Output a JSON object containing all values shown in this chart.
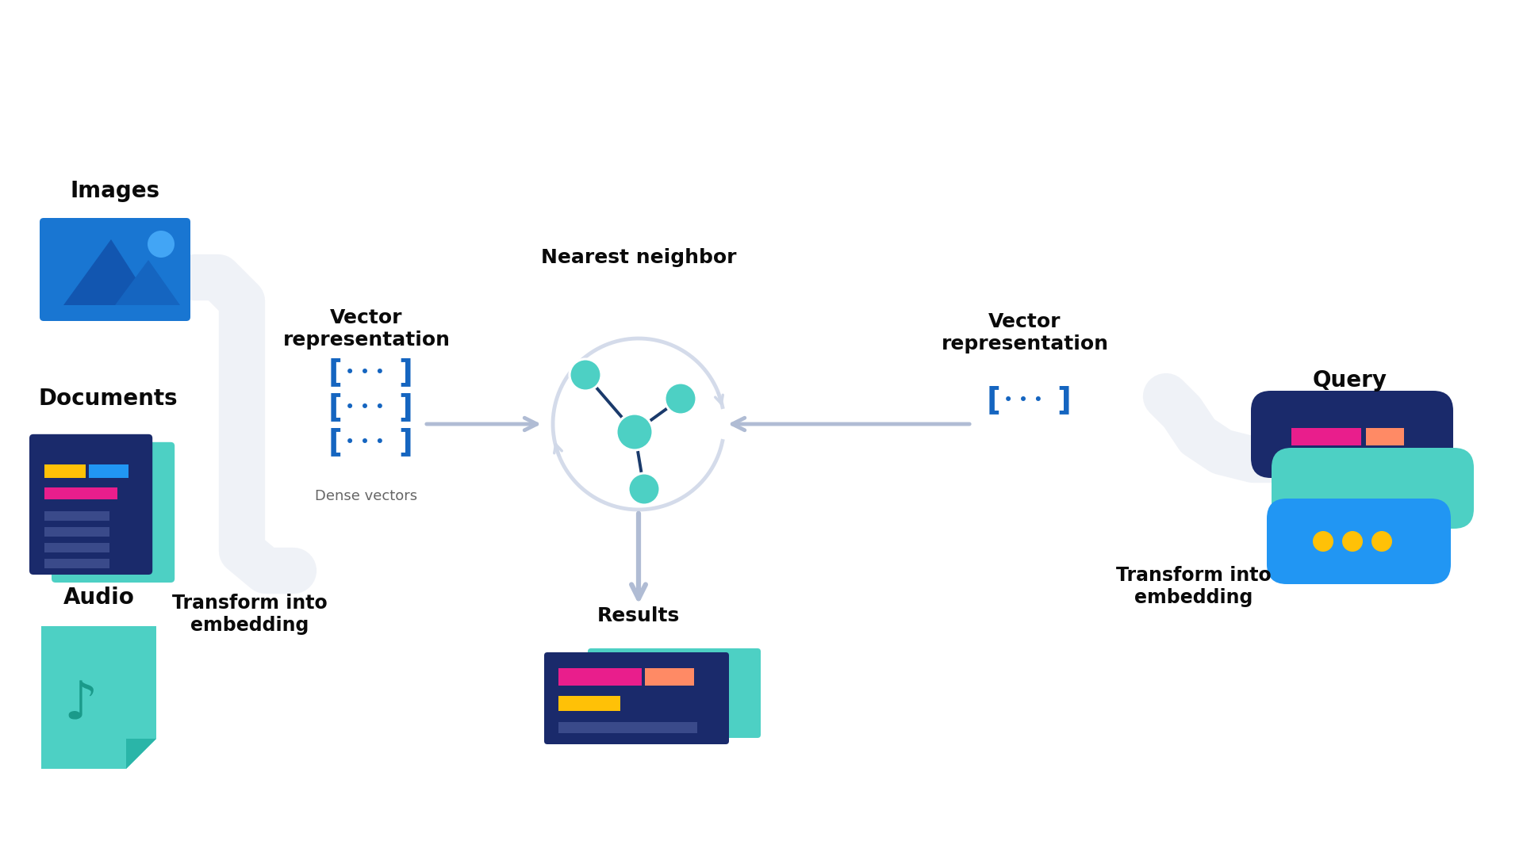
{
  "bg_color": "#ffffff",
  "labels": {
    "images": "Images",
    "documents": "Documents",
    "audio": "Audio",
    "transform_left": "Transform into\nembedding",
    "vector_rep_left": "Vector\nrepresentation",
    "dense_vectors": "Dense vectors",
    "nearest_neighbor": "Nearest neighbor",
    "vector_rep_right": "Vector\nrepresentation",
    "transform_right": "Transform into\nembedding",
    "query": "Query",
    "results": "Results"
  },
  "colors": {
    "bg_color": "#ffffff",
    "blue_dark": "#1a3a6b",
    "blue_mid": "#1565c0",
    "blue_bright": "#1976d2",
    "teal": "#4dd0c4",
    "teal_dark": "#2ab5a8",
    "pink": "#e91e8c",
    "salmon": "#ff8a65",
    "yellow": "#ffc107",
    "arrow_gray": "#b0bcd4",
    "text_dark": "#0a0a0a",
    "bracket_color": "#1565c0",
    "dot_color": "#1565c0",
    "node_color": "#4dd0c4",
    "edge_color": "#1a3a6b",
    "curve_gray": "#d0d8e8",
    "blue_line": "#3a4a8a",
    "blue_pill": "#2196f3",
    "doc_dark": "#1a2a6b"
  }
}
